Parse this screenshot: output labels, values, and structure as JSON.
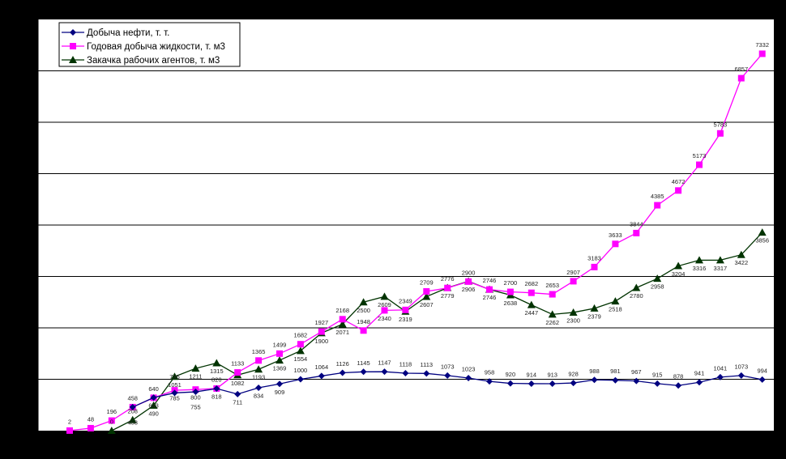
{
  "chart_data": {
    "type": "line",
    "title": "",
    "xlabel": "",
    "ylabel": "",
    "ylim": [
      0,
      8000
    ],
    "grid": true,
    "legend_position": "top-left",
    "series": [
      {
        "name": "Добыча нефти, т. т.",
        "color": "#000080",
        "marker": "diamond",
        "start_index": 3,
        "values": [
          458,
          643,
          735,
          755,
          818,
          711,
          834,
          909,
          1000,
          1064,
          1126,
          1145,
          1147,
          1118,
          1113,
          1073,
          1023,
          958,
          920,
          914,
          913,
          928,
          988,
          981,
          967,
          915,
          878,
          941,
          1041,
          1073,
          994
        ]
      },
      {
        "name": "Годовая добыча жидкости, т. м3",
        "color": "#ff00ff",
        "marker": "square",
        "start_index": 0,
        "values": [
          2,
          48,
          196,
          458,
          640,
          785,
          800,
          820,
          1133,
          1365,
          1499,
          1682,
          1927,
          2168,
          1948,
          2340,
          2349,
          2709,
          2776,
          2900,
          2746,
          2700,
          2682,
          2653,
          2907,
          3183,
          3633,
          3844,
          4385,
          4672,
          5173,
          5783,
          6857,
          7332
        ]
      },
      {
        "name": "Закачка рабочих агентов, т. м3",
        "color": "#003300",
        "marker": "triangle",
        "start_index": 2,
        "values": [
          0,
          208,
          490,
          1051,
          1211,
          1315,
          1082,
          1193,
          1369,
          1554,
          1900,
          2071,
          2500,
          2609,
          2319,
          2607,
          2779,
          2906,
          2746,
          2638,
          2447,
          2262,
          2300,
          2379,
          2518,
          2780,
          2958,
          3204,
          3316,
          3317,
          3422,
          3856
        ]
      }
    ]
  }
}
